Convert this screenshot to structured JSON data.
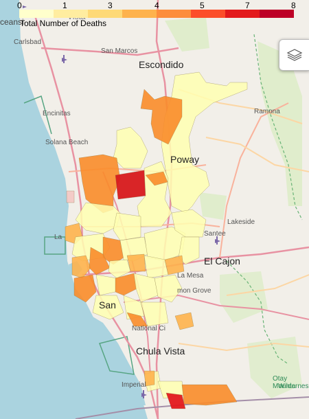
{
  "legend": {
    "title": "Total Number of Deaths",
    "ticks": [
      "0",
      "1",
      "3",
      "4",
      "5",
      "7",
      "8"
    ],
    "colors": [
      "#ffffcc",
      "#ffeda0",
      "#fed976",
      "#feb24c",
      "#fd8d3c",
      "#fc4e2a",
      "#e31a1c",
      "#bd0026"
    ]
  },
  "places": {
    "carlsbad": "Carlsbad",
    "san_marcos": "San Marcos",
    "escondido": "Escondido",
    "encinitas": "Encinitas",
    "solana_beach": "Solana Beach",
    "ramona": "Ramona",
    "poway": "Poway",
    "lakeside": "Lakeside",
    "santee": "Santee",
    "el_cajon": "El Cajon",
    "la_mesa": "La Mesa",
    "lemon_grove": "mon Grove",
    "san": "San",
    "national_city": "National Ci",
    "chula_vista": "Chula Vista",
    "imperial": "Imperial",
    "otay": "Otay Mounta",
    "wilderness": "Wildernes",
    "oceanside": "ceansi",
    "vista": "Vista",
    "la": "La"
  },
  "icons": {
    "layers": "layers-icon",
    "airport": "airport-icon"
  }
}
